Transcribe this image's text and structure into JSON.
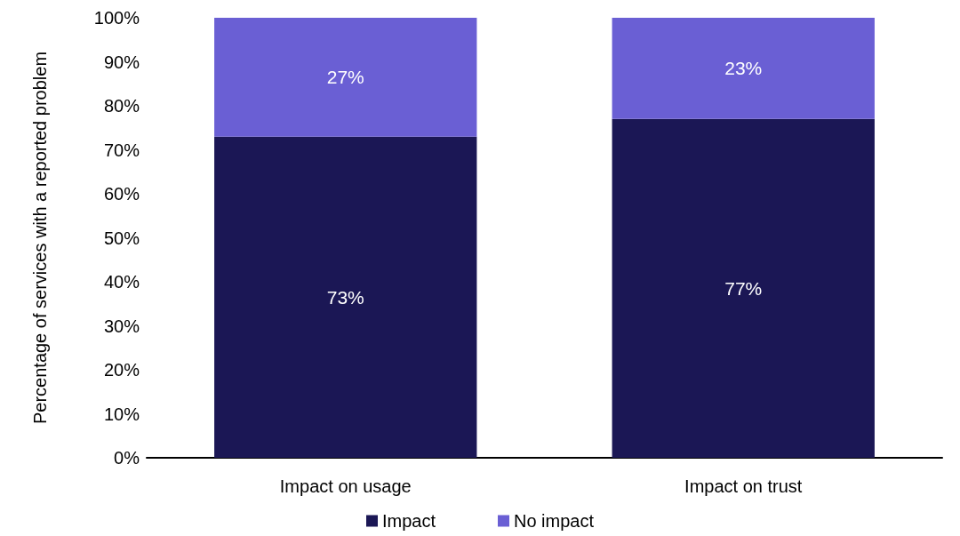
{
  "chart_data": {
    "type": "bar",
    "stacked": true,
    "ylabel": "Percentage of services with a reported problem",
    "categories": [
      "Impact on usage",
      "Impact on trust"
    ],
    "series": [
      {
        "name": "Impact",
        "color": "#1b1755",
        "values": [
          73,
          77
        ],
        "value_labels": [
          "73%",
          "77%"
        ]
      },
      {
        "name": "No impact",
        "color": "#6a5fd4",
        "values": [
          27,
          23
        ],
        "value_labels": [
          "27%",
          "23%"
        ]
      }
    ],
    "ylim": [
      0,
      100
    ],
    "yticks": [
      {
        "value": 0,
        "label": "0%"
      },
      {
        "value": 10,
        "label": "10%"
      },
      {
        "value": 20,
        "label": "20%"
      },
      {
        "value": 30,
        "label": "30%"
      },
      {
        "value": 40,
        "label": "40%"
      },
      {
        "value": 50,
        "label": "50%"
      },
      {
        "value": 60,
        "label": "60%"
      },
      {
        "value": 70,
        "label": "70%"
      },
      {
        "value": 80,
        "label": "80%"
      },
      {
        "value": 90,
        "label": "90%"
      },
      {
        "value": 100,
        "label": "100%"
      }
    ],
    "grid": false,
    "legend": "bottom"
  }
}
